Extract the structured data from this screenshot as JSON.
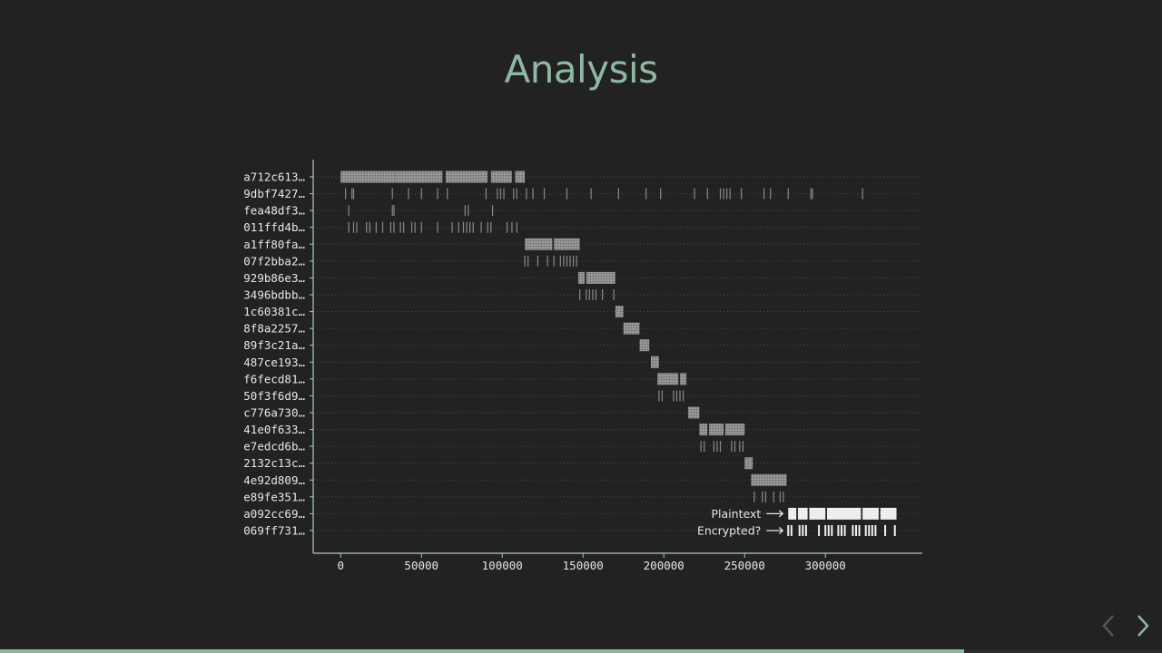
{
  "slide": {
    "title": "Analysis",
    "accent_color": "#8fb8a3",
    "background": "#222222"
  },
  "navigation": {
    "prev_icon": "chevron-left-icon",
    "next_icon": "chevron-right-icon",
    "prev_enabled": false,
    "next_enabled": true,
    "progress": 0.83
  },
  "chart_data": {
    "type": "timeline",
    "xlim": [
      -17000,
      360000
    ],
    "xticks": [
      0,
      50000,
      100000,
      150000,
      200000,
      250000,
      300000
    ],
    "tick_labels": [
      "0",
      "50000",
      "100000",
      "150000",
      "200000",
      "250000",
      "300000"
    ],
    "grid": "horizontal dotted",
    "gray_color": "#8a8a8a",
    "highlight_color": "#f2f2f2",
    "rows": [
      {
        "label": "a712c613…",
        "style": "block",
        "spans": [
          [
            0,
            15000
          ],
          [
            15000,
            34000
          ],
          [
            34000,
            63000
          ],
          [
            65000,
            91000
          ],
          [
            93000,
            106000
          ],
          [
            108000,
            114000
          ]
        ]
      },
      {
        "label": "9dbf7427…",
        "style": "ticks",
        "ticks": [
          3000,
          7000,
          8000,
          32000,
          42000,
          50000,
          60000,
          66000,
          90000,
          97000,
          99000,
          101000,
          107000,
          109000,
          115000,
          119000,
          126000,
          140000,
          155000,
          172000,
          189000,
          198000,
          219000,
          227000,
          235000,
          237000,
          239000,
          241000,
          248000,
          262000,
          266000,
          277000,
          291000,
          292000,
          323000
        ]
      },
      {
        "label": "fea48df3…",
        "style": "ticks",
        "ticks": [
          5000,
          32000,
          33000,
          77000,
          79000,
          94000
        ]
      },
      {
        "label": "011ffd4b…",
        "style": "ticks",
        "ticks": [
          5000,
          8000,
          10000,
          16000,
          18000,
          22000,
          26000,
          31000,
          33000,
          37000,
          39000,
          44000,
          46000,
          50000,
          60000,
          69000,
          73000,
          76000,
          78000,
          80000,
          82000,
          87000,
          91000,
          93000,
          103000,
          106000,
          109000
        ]
      },
      {
        "label": "a1ff80fa…",
        "style": "block",
        "spans": [
          [
            114000,
            131000
          ],
          [
            132000,
            148000
          ]
        ]
      },
      {
        "label": "07f2bba2…",
        "style": "ticks",
        "ticks": [
          114000,
          116000,
          122000,
          128000,
          132000,
          136000,
          138000,
          140000,
          142000,
          144000,
          146000
        ]
      },
      {
        "label": "929b86e3…",
        "style": "block",
        "spans": [
          [
            147000,
            151000
          ],
          [
            152000,
            170000
          ]
        ]
      },
      {
        "label": "3496bdbb…",
        "style": "ticks",
        "ticks": [
          148000,
          152000,
          154000,
          156000,
          158000,
          162000,
          169000
        ]
      },
      {
        "label": "1c60381c…",
        "style": "block",
        "spans": [
          [
            170000,
            175000
          ]
        ]
      },
      {
        "label": "8f8a2257…",
        "style": "block",
        "spans": [
          [
            175000,
            185000
          ]
        ]
      },
      {
        "label": "89f3c21a…",
        "style": "block",
        "spans": [
          [
            185000,
            191000
          ]
        ]
      },
      {
        "label": "487ce193…",
        "style": "block",
        "spans": [
          [
            192000,
            197000
          ]
        ]
      },
      {
        "label": "f6fecd81…",
        "style": "block",
        "spans": [
          [
            196000,
            209000
          ],
          [
            210000,
            214000
          ]
        ]
      },
      {
        "label": "50f3f6d9…",
        "style": "ticks",
        "ticks": [
          197000,
          199000,
          206000,
          208000,
          210000,
          212000
        ]
      },
      {
        "label": "c776a730…",
        "style": "block",
        "spans": [
          [
            215000,
            219000
          ],
          [
            219000,
            222000
          ]
        ]
      },
      {
        "label": "41e0f633…",
        "style": "block",
        "spans": [
          [
            222000,
            227000
          ],
          [
            228000,
            237000
          ],
          [
            238000,
            250000
          ]
        ]
      },
      {
        "label": "e7edcd6b…",
        "style": "ticks",
        "ticks": [
          223000,
          225000,
          231000,
          233000,
          235000,
          242000,
          244000,
          247000,
          249000
        ]
      },
      {
        "label": "2132c13c…",
        "style": "block",
        "spans": [
          [
            250000,
            255000
          ]
        ]
      },
      {
        "label": "4e92d809…",
        "style": "block",
        "spans": [
          [
            254000,
            265000
          ],
          [
            265000,
            276000
          ]
        ]
      },
      {
        "label": "e89fe351…",
        "style": "ticks",
        "ticks": [
          256000,
          261000,
          263000,
          268000,
          272000,
          274000
        ]
      },
      {
        "label": "a092cc69…",
        "style": "block",
        "highlight": true,
        "annotation": "Plaintext",
        "spans": [
          [
            277000,
            282000
          ],
          [
            283000,
            289000
          ],
          [
            290000,
            300000
          ],
          [
            301000,
            322000
          ],
          [
            323000,
            333000
          ],
          [
            334000,
            344000
          ]
        ]
      },
      {
        "label": "069ff731…",
        "style": "ticks",
        "highlight": true,
        "annotation": "Encrypted?",
        "ticks": [
          277000,
          279000,
          284000,
          286000,
          288000,
          296000,
          300000,
          302000,
          304000,
          308000,
          310000,
          312000,
          317000,
          319000,
          321000,
          325000,
          327000,
          329000,
          331000,
          337000,
          343000
        ]
      }
    ]
  }
}
